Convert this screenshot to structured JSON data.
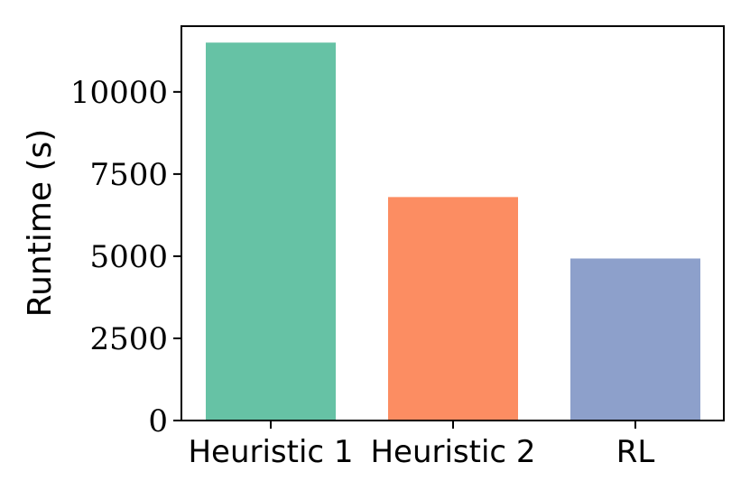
{
  "chart_data": {
    "type": "bar",
    "title": "",
    "xlabel": "",
    "ylabel": "Runtime (s)",
    "categories": [
      "Heuristic 1",
      "Heuristic 2",
      "RL"
    ],
    "values": [
      11500,
      6800,
      4930
    ],
    "colors": [
      "#66c2a5",
      "#fc8d62",
      "#8da0cb"
    ],
    "ylim": [
      0,
      12000
    ],
    "yticks": [
      0,
      2500,
      5000,
      7500,
      10000
    ],
    "ytick_labels": [
      "0",
      "2500",
      "5000",
      "7500",
      "10000"
    ],
    "grid": false,
    "legend": "none"
  }
}
